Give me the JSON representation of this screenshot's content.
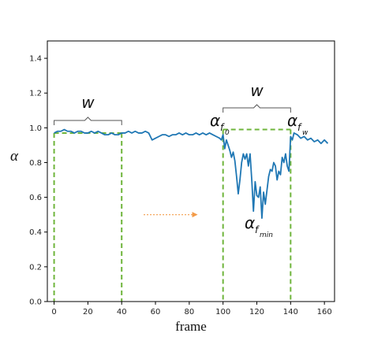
{
  "chart_data": {
    "type": "line",
    "xlabel": "frame",
    "ylabel": "α",
    "xlim": [
      -4,
      166
    ],
    "ylim": [
      0.0,
      1.5
    ],
    "xticks": [
      0,
      20,
      40,
      60,
      80,
      100,
      120,
      140,
      160
    ],
    "yticks": [
      0.0,
      0.2,
      0.4,
      0.6,
      0.8,
      1.0,
      1.2,
      1.4
    ],
    "grid": false,
    "line_color": "#1f77b4",
    "guide_color": "#6fb53c",
    "arrow_color": "#f39b48",
    "bracket_color": "#555555",
    "series": [
      {
        "x": [
          0,
          2,
          4,
          6,
          8,
          10,
          12,
          14,
          16,
          18,
          20,
          22,
          24,
          26,
          28,
          30,
          32,
          34,
          36,
          38,
          40,
          42,
          44,
          46,
          48,
          50,
          52,
          54,
          56,
          57,
          58,
          60,
          62,
          64,
          66,
          68,
          70,
          72,
          74,
          76,
          78,
          80,
          82,
          84,
          86,
          88,
          90,
          92,
          94,
          96,
          98,
          99,
          100,
          101,
          102,
          103,
          104,
          105,
          106,
          107,
          108,
          109,
          110,
          111,
          112,
          113,
          114,
          115,
          116,
          117,
          118,
          119,
          120,
          121,
          122,
          123,
          124,
          125,
          126,
          127,
          128,
          129,
          130,
          131,
          132,
          133,
          134,
          135,
          136,
          137,
          138,
          139,
          140,
          141,
          142,
          144,
          146,
          148,
          150,
          152,
          154,
          156,
          158,
          160,
          162
        ],
        "values": [
          0.97,
          0.98,
          0.98,
          0.99,
          0.98,
          0.98,
          0.97,
          0.98,
          0.98,
          0.97,
          0.97,
          0.98,
          0.97,
          0.98,
          0.97,
          0.96,
          0.96,
          0.97,
          0.96,
          0.96,
          0.97,
          0.97,
          0.98,
          0.97,
          0.98,
          0.97,
          0.97,
          0.98,
          0.97,
          0.95,
          0.93,
          0.94,
          0.95,
          0.96,
          0.96,
          0.95,
          0.96,
          0.96,
          0.97,
          0.96,
          0.97,
          0.96,
          0.96,
          0.97,
          0.96,
          0.97,
          0.96,
          0.97,
          0.96,
          0.95,
          0.94,
          0.93,
          0.96,
          0.88,
          0.93,
          0.9,
          0.87,
          0.83,
          0.86,
          0.81,
          0.72,
          0.62,
          0.7,
          0.8,
          0.85,
          0.82,
          0.85,
          0.78,
          0.85,
          0.7,
          0.52,
          0.69,
          0.61,
          0.6,
          0.66,
          0.48,
          0.63,
          0.56,
          0.64,
          0.72,
          0.76,
          0.75,
          0.8,
          0.78,
          0.7,
          0.75,
          0.73,
          0.83,
          0.8,
          0.85,
          0.78,
          0.75,
          0.95,
          0.93,
          0.97,
          0.96,
          0.94,
          0.95,
          0.93,
          0.94,
          0.92,
          0.93,
          0.91,
          0.93,
          0.91
        ]
      }
    ],
    "annotations": {
      "w_left": "w",
      "w_right": "w",
      "a_f0_main": "α",
      "a_f0_sub": "f",
      "a_f0_subsub": "0",
      "a_fw_main": "α",
      "a_fw_sub": "f",
      "a_fw_subsub": "w",
      "a_fmin_main": "α",
      "a_fmin_sub": "f",
      "a_fmin_subsub": "min"
    }
  }
}
